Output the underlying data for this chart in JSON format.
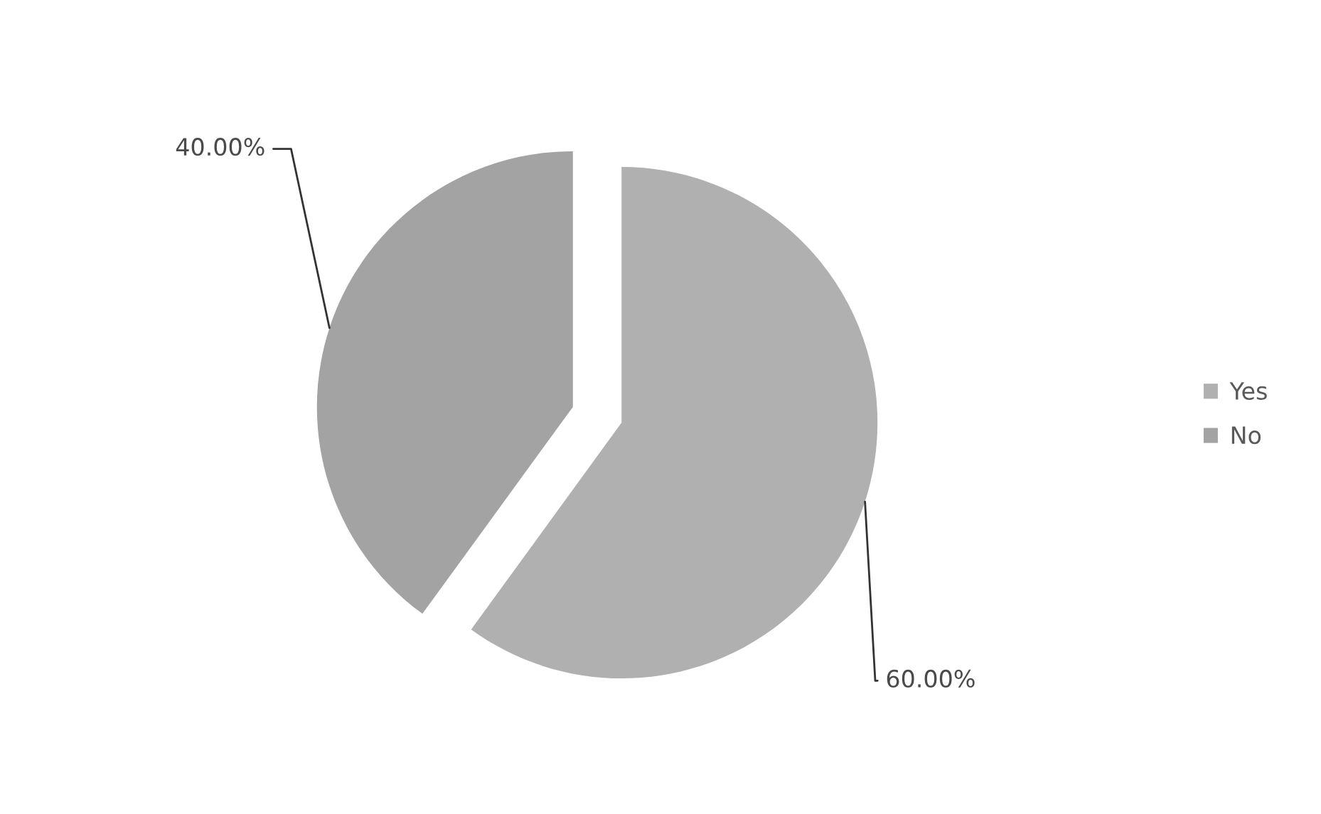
{
  "chart_data": {
    "type": "pie",
    "categories": [
      "Yes",
      "No"
    ],
    "values": [
      60,
      40
    ],
    "colors": [
      "#b0b0b0",
      "#a3a3a3"
    ],
    "value_labels": [
      "60.00%",
      "40.00%"
    ],
    "legend": "right"
  }
}
